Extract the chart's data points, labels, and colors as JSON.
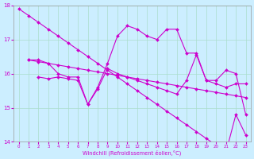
{
  "bg_color": "#cceeff",
  "grid_color": "#aaddcc",
  "line_color": "#cc00cc",
  "ylim": [
    14,
    18
  ],
  "xlim": [
    -0.5,
    23.5
  ],
  "yticks": [
    14,
    15,
    16,
    17,
    18
  ],
  "xticks": [
    0,
    1,
    2,
    3,
    4,
    5,
    6,
    7,
    8,
    9,
    10,
    11,
    12,
    13,
    14,
    15,
    16,
    17,
    18,
    19,
    20,
    21,
    22,
    23
  ],
  "xlabel": "Windchill (Refroidissement éolien,°C)",
  "linewidth": 0.8,
  "markersize": 2.0,
  "series": {
    "line_A_x": [
      0,
      1,
      2,
      3,
      4,
      5,
      6,
      7,
      8,
      9,
      10,
      11,
      12,
      13,
      14,
      15,
      16,
      17,
      18,
      19,
      20,
      21,
      22,
      23
    ],
    "line_A_y": [
      17.9,
      17.7,
      17.5,
      17.3,
      17.1,
      16.9,
      16.7,
      16.5,
      16.3,
      16.1,
      15.9,
      15.7,
      15.5,
      15.3,
      15.1,
      14.9,
      14.7,
      14.5,
      14.3,
      14.1,
      13.9,
      13.7,
      14.8,
      14.2
    ],
    "line_B_x": [
      1,
      2,
      3,
      4,
      5,
      6,
      7,
      8,
      9,
      10,
      11,
      12,
      13,
      14,
      15,
      16,
      17,
      18,
      19,
      20,
      21,
      22,
      23
    ],
    "line_B_y": [
      16.4,
      16.4,
      16.3,
      16.0,
      15.9,
      15.9,
      15.1,
      15.6,
      16.3,
      17.1,
      17.4,
      17.3,
      17.1,
      17.0,
      17.3,
      17.3,
      16.6,
      16.6,
      15.8,
      15.8,
      16.1,
      16.0,
      14.8
    ],
    "line_C_x": [
      1,
      2,
      3,
      4,
      5,
      6,
      7,
      8,
      9,
      10,
      11,
      12,
      13,
      14,
      15,
      16,
      17,
      18,
      19,
      20,
      21,
      22,
      23
    ],
    "line_C_y": [
      16.4,
      16.35,
      16.3,
      16.25,
      16.2,
      16.15,
      16.1,
      16.05,
      16.0,
      15.95,
      15.9,
      15.85,
      15.8,
      15.75,
      15.7,
      15.65,
      15.6,
      15.55,
      15.5,
      15.45,
      15.4,
      15.35,
      15.3
    ],
    "line_D_x": [
      2,
      3,
      4,
      5,
      6,
      7,
      8,
      9,
      10,
      11,
      12,
      13,
      14,
      15,
      16,
      17,
      18,
      19,
      20,
      21,
      22,
      23
    ],
    "line_D_y": [
      15.9,
      15.85,
      15.9,
      15.85,
      15.8,
      15.1,
      15.55,
      16.15,
      16.0,
      15.9,
      15.8,
      15.7,
      15.6,
      15.5,
      15.4,
      15.8,
      16.55,
      15.8,
      15.7,
      15.6,
      15.7,
      15.7
    ]
  }
}
